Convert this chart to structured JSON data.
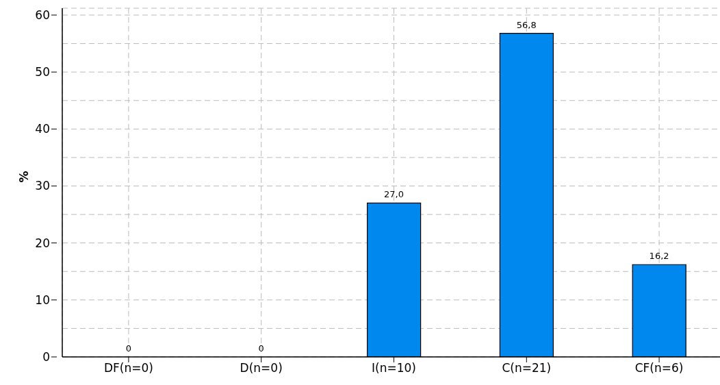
{
  "chart_data": {
    "type": "bar",
    "ylabel": "%",
    "categories": [
      "DF(n=0)",
      "D(n=0)",
      "I(n=10)",
      "C(n=21)",
      "CF(n=6)"
    ],
    "values": [
      0,
      0,
      27.0,
      56.8,
      16.2
    ],
    "value_labels": [
      "0",
      "0",
      "27,0",
      "56,8",
      "16,2"
    ],
    "color": "#0088ee",
    "ylim": [
      0,
      61.2
    ],
    "yticks": [
      0,
      {
        "value": 5,
        "label": null
      },
      10,
      {
        "value": 15,
        "label": null
      },
      20,
      {
        "value": 25,
        "label": null
      },
      30,
      {
        "value": 35,
        "label": null
      },
      40,
      {
        "value": 45,
        "label": null
      },
      50,
      {
        "value": 55,
        "label": null
      },
      60
    ],
    "grid": true
  }
}
